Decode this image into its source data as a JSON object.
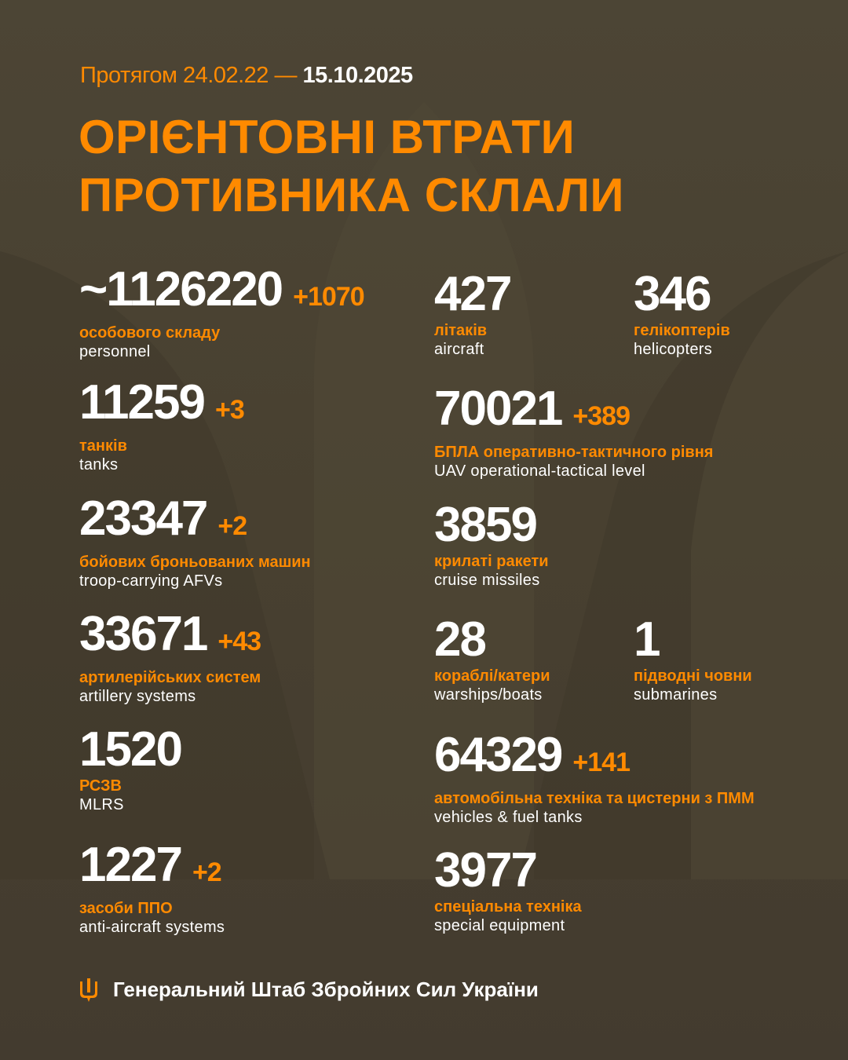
{
  "header": {
    "period_prefix": "Протягом 24.02.22 —",
    "period_end": "15.10.2025",
    "title_line1": "ОРІЄНТОВНІ ВТРАТИ",
    "title_line2": "ПРОТИВНИКА СКЛАЛИ"
  },
  "colors": {
    "accent": "#ff8a00",
    "background": "#4a4334",
    "text": "#ffffff"
  },
  "stats": {
    "personnel": {
      "value": "~1126220",
      "delta": "+1070",
      "ua": "особового складу",
      "en": "personnel"
    },
    "tanks": {
      "value": "11259",
      "delta": "+3",
      "ua": "танків",
      "en": "tanks"
    },
    "afvs": {
      "value": "23347",
      "delta": "+2",
      "ua": "бойових броньованих машин",
      "en": "troop-carrying AFVs"
    },
    "artillery": {
      "value": "33671",
      "delta": "+43",
      "ua": "артилерійських систем",
      "en": "artillery systems"
    },
    "mlrs": {
      "value": "1520",
      "delta": "",
      "ua": "РСЗВ",
      "en": "MLRS"
    },
    "anti_aircraft": {
      "value": "1227",
      "delta": "+2",
      "ua": "засоби ППО",
      "en": "anti-aircraft systems"
    },
    "aircraft": {
      "value": "427",
      "delta": "",
      "ua": "літаків",
      "en": "aircraft"
    },
    "helicopters": {
      "value": "346",
      "delta": "",
      "ua": "гелікоптерів",
      "en": "helicopters"
    },
    "uav": {
      "value": "70021",
      "delta": "+389",
      "ua": "БПЛА оперативно-тактичного рівня",
      "en": "UAV operational-tactical level"
    },
    "cruise_missiles": {
      "value": "3859",
      "delta": "",
      "ua": "крилаті ракети",
      "en": "cruise missiles"
    },
    "warships": {
      "value": "28",
      "delta": "",
      "ua": "кораблі/катери",
      "en": "warships/boats"
    },
    "submarines": {
      "value": "1",
      "delta": "",
      "ua": "підводні човни",
      "en": "submarines"
    },
    "vehicles": {
      "value": "64329",
      "delta": "+141",
      "ua": "автомобільна техніка та цистерни з ПММ",
      "en": "vehicles & fuel tanks"
    },
    "special_equipment": {
      "value": "3977",
      "delta": "",
      "ua": "спеціальна техніка",
      "en": "special equipment"
    }
  },
  "footer": {
    "logo_icon": "trident-icon",
    "org": "Генеральний Штаб Збройних Сил України"
  }
}
